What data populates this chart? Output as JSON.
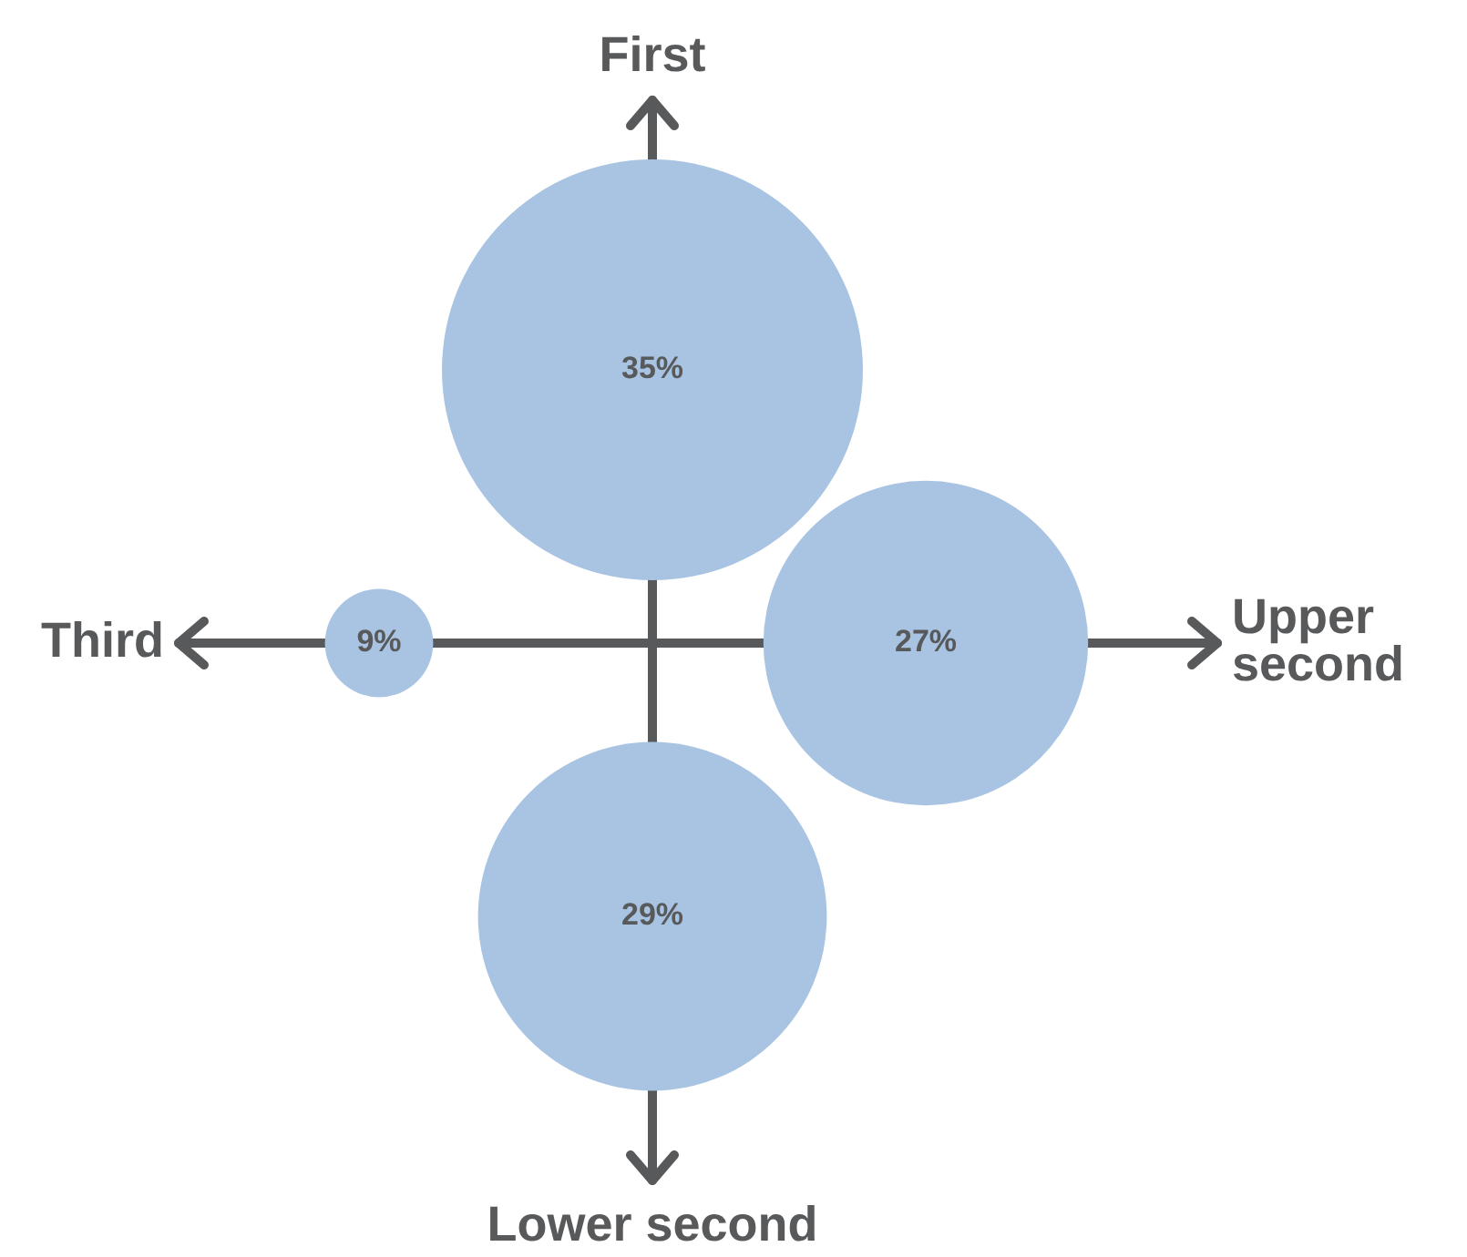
{
  "chart_data": {
    "type": "other",
    "categories": [
      "First",
      "Upper second",
      "Lower second",
      "Third"
    ],
    "values": [
      35,
      27,
      29,
      9
    ],
    "value_labels": [
      "35%",
      "27%",
      "29%",
      "9%"
    ],
    "color": "#a9c4e2"
  }
}
